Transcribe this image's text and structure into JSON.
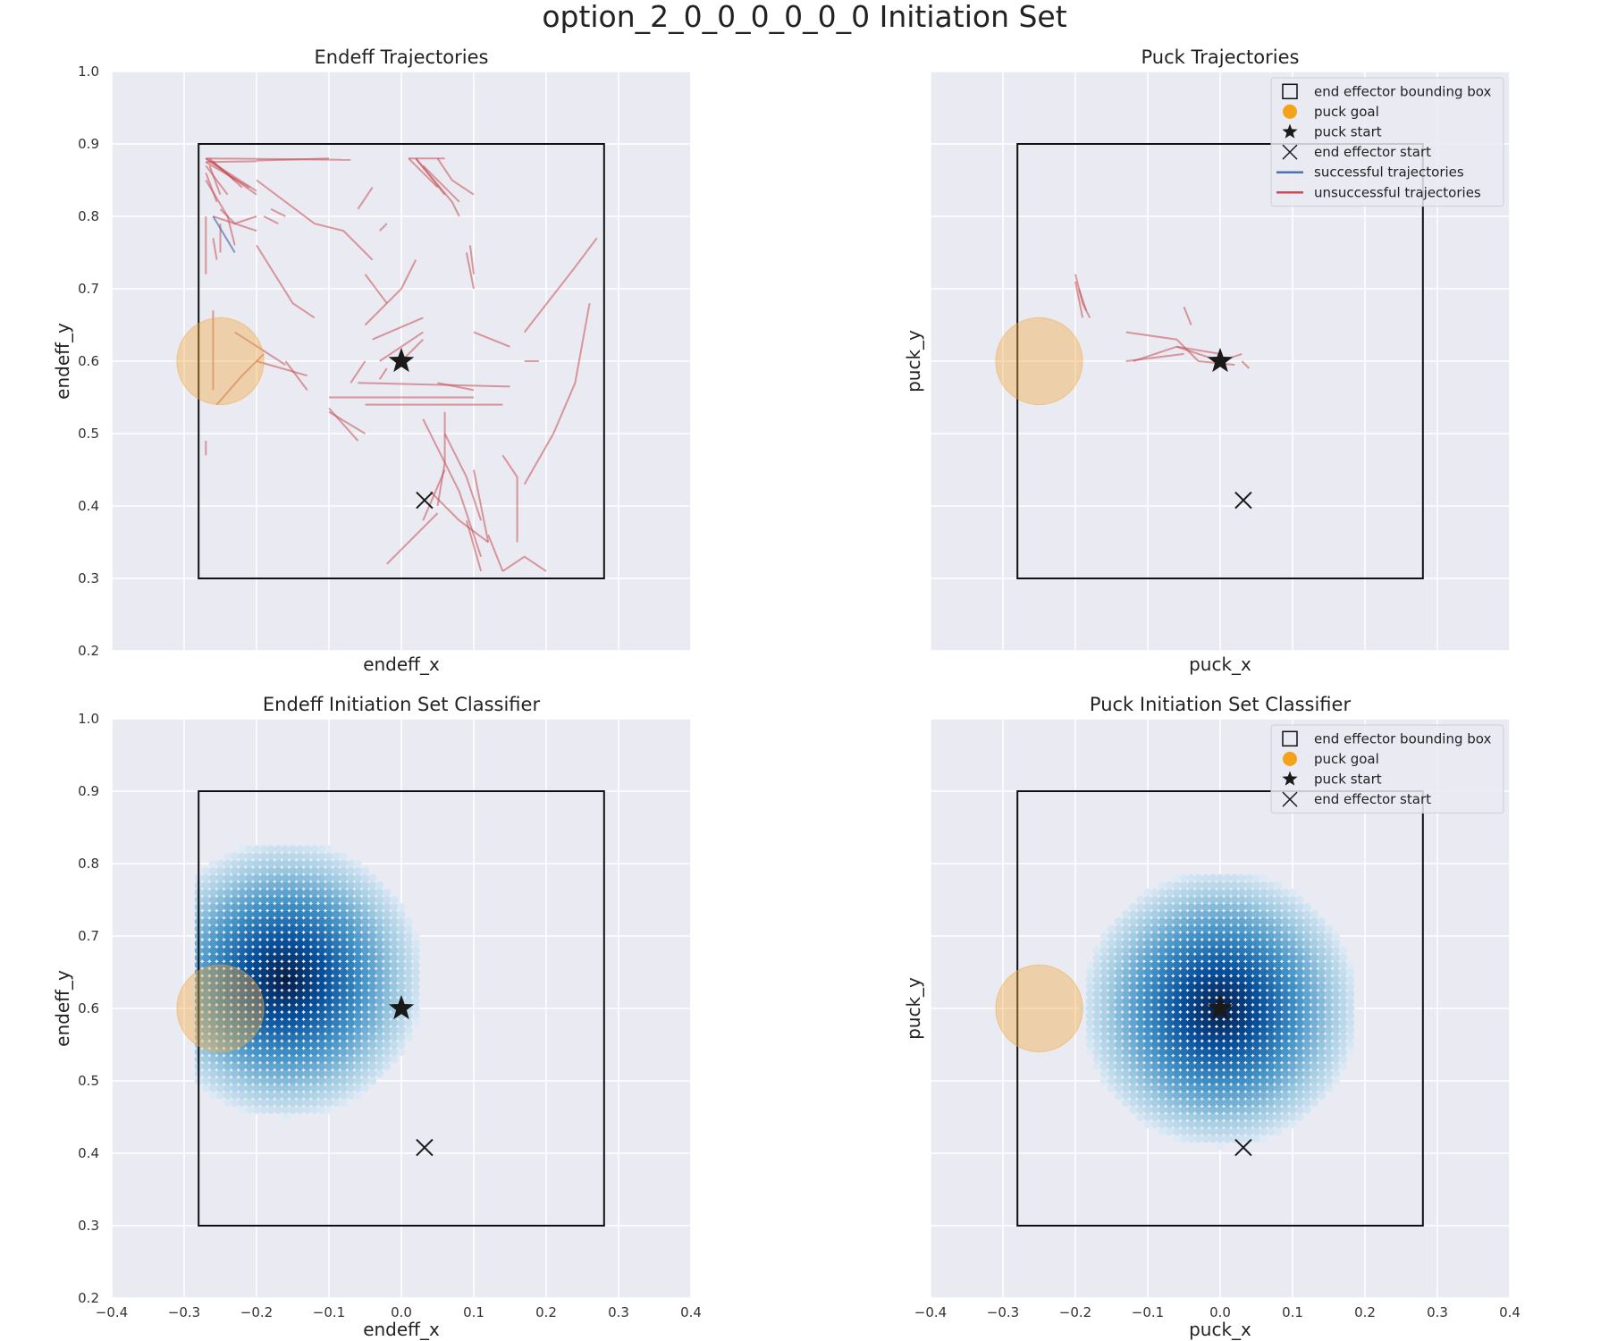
{
  "chart_data": {
    "title": "option_2_0_0_0_0_0_0 Initiation Set",
    "xlim": [
      -0.4,
      0.4
    ],
    "ylim": [
      0.2,
      1.0
    ],
    "xticks": [
      "−0.4",
      "−0.3",
      "−0.2",
      "−0.1",
      "0.0",
      "0.1",
      "0.2",
      "0.3",
      "0.4"
    ],
    "yticks": [
      "0.2",
      "0.3",
      "0.4",
      "0.5",
      "0.6",
      "0.7",
      "0.8",
      "0.9",
      "1.0"
    ],
    "grid": true,
    "bounding_box": {
      "x": [
        -0.28,
        0.28
      ],
      "y": [
        0.3,
        0.9
      ]
    },
    "puck_goal": {
      "x": -0.25,
      "y": 0.6,
      "radius": 0.06,
      "color": "#f2a93b"
    },
    "puck_start": {
      "x": 0.0,
      "y": 0.6
    },
    "endeff_start": {
      "x": 0.032,
      "y": 0.408
    },
    "colors": {
      "successful": "#4c72b0",
      "unsuccessful": "#c44e52",
      "background": "#eaeaf2"
    },
    "legend_entries": {
      "bbox": "end effector bounding box",
      "goal": "puck goal",
      "pstart": "puck start",
      "estart": "end effector start",
      "succ": "successful trajectories",
      "fail": "unsuccessful trajectories"
    },
    "panels": [
      {
        "type": "line",
        "title": "Endeff Trajectories",
        "xlabel": "endeff_x",
        "ylabel": "endeff_y",
        "legend": null,
        "show_xticks": false,
        "show_yticks": true,
        "unsuccessful_trajectories": [
          [
            [
              -0.27,
              0.88
            ],
            [
              -0.2,
              0.83
            ]
          ],
          [
            [
              -0.27,
              0.88
            ],
            [
              -0.2,
              0.835
            ]
          ],
          [
            [
              -0.27,
              0.875
            ],
            [
              -0.21,
              0.84
            ]
          ],
          [
            [
              -0.265,
              0.88
            ],
            [
              -0.22,
              0.84
            ]
          ],
          [
            [
              -0.26,
              0.875
            ],
            [
              -0.23,
              0.85
            ]
          ],
          [
            [
              -0.27,
              0.87
            ],
            [
              -0.24,
              0.83
            ]
          ],
          [
            [
              -0.265,
              0.87
            ],
            [
              -0.25,
              0.83
            ]
          ],
          [
            [
              -0.27,
              0.86
            ],
            [
              -0.255,
              0.82
            ]
          ],
          [
            [
              -0.27,
              0.88
            ],
            [
              -0.07,
              0.878
            ]
          ],
          [
            [
              -0.27,
              0.875
            ],
            [
              -0.2,
              0.876
            ]
          ],
          [
            [
              -0.2,
              0.877
            ],
            [
              -0.1,
              0.88
            ]
          ],
          [
            [
              -0.27,
              0.85
            ],
            [
              -0.24,
              0.8
            ]
          ],
          [
            [
              -0.26,
              0.8
            ],
            [
              -0.2,
              0.78
            ]
          ],
          [
            [
              -0.25,
              0.81
            ],
            [
              -0.23,
              0.79
            ],
            [
              -0.2,
              0.8
            ]
          ],
          [
            [
              -0.18,
              0.81
            ],
            [
              -0.16,
              0.8
            ]
          ],
          [
            [
              -0.19,
              0.8
            ],
            [
              -0.17,
              0.79
            ]
          ],
          [
            [
              -0.27,
              0.8
            ],
            [
              -0.27,
              0.72
            ]
          ],
          [
            [
              -0.26,
              0.77
            ],
            [
              -0.255,
              0.74
            ]
          ],
          [
            [
              -0.24,
              0.8
            ],
            [
              -0.23,
              0.76
            ]
          ],
          [
            [
              -0.25,
              0.79
            ],
            [
              -0.25,
              0.75
            ]
          ],
          [
            [
              -0.2,
              0.85
            ],
            [
              -0.12,
              0.79
            ],
            [
              -0.08,
              0.78
            ],
            [
              -0.04,
              0.74
            ]
          ],
          [
            [
              -0.2,
              0.76
            ],
            [
              -0.15,
              0.68
            ],
            [
              -0.12,
              0.66
            ]
          ],
          [
            [
              -0.26,
              0.67
            ],
            [
              -0.26,
              0.56
            ]
          ],
          [
            [
              -0.27,
              0.49
            ],
            [
              -0.27,
              0.47
            ]
          ],
          [
            [
              -0.255,
              0.54
            ],
            [
              -0.22,
              0.58
            ],
            [
              -0.19,
              0.61
            ]
          ],
          [
            [
              -0.23,
              0.64
            ],
            [
              -0.16,
              0.595
            ]
          ],
          [
            [
              -0.16,
              0.6
            ],
            [
              -0.13,
              0.56
            ]
          ],
          [
            [
              -0.2,
              0.6
            ],
            [
              -0.13,
              0.58
            ]
          ],
          [
            [
              -0.05,
              0.65
            ],
            [
              0.0,
              0.7
            ],
            [
              0.02,
              0.74
            ]
          ],
          [
            [
              -0.05,
              0.72
            ],
            [
              -0.02,
              0.68
            ]
          ],
          [
            [
              -0.03,
              0.78
            ],
            [
              -0.02,
              0.79
            ]
          ],
          [
            [
              -0.07,
              0.57
            ],
            [
              -0.05,
              0.6
            ]
          ],
          [
            [
              -0.04,
              0.63
            ],
            [
              0.03,
              0.66
            ]
          ],
          [
            [
              -0.03,
              0.6
            ],
            [
              0.03,
              0.64
            ]
          ],
          [
            [
              -0.03,
              0.575
            ],
            [
              -0.02,
              0.59
            ]
          ],
          [
            [
              0.0,
              0.6
            ],
            [
              0.03,
              0.63
            ]
          ],
          [
            [
              -0.06,
              0.57
            ],
            [
              0.15,
              0.565
            ]
          ],
          [
            [
              -0.1,
              0.55
            ],
            [
              0.1,
              0.55
            ]
          ],
          [
            [
              -0.1,
              0.535
            ],
            [
              -0.06,
              0.49
            ]
          ],
          [
            [
              -0.1,
              0.53
            ],
            [
              -0.05,
              0.5
            ]
          ],
          [
            [
              0.05,
              0.57
            ],
            [
              0.1,
              0.56
            ]
          ],
          [
            [
              0.03,
              0.54
            ],
            [
              0.14,
              0.54
            ]
          ],
          [
            [
              -0.05,
              0.54
            ],
            [
              0.03,
              0.54
            ]
          ],
          [
            [
              0.02,
              0.88
            ],
            [
              0.07,
              0.82
            ],
            [
              0.08,
              0.8
            ]
          ],
          [
            [
              0.02,
              0.88
            ],
            [
              0.06,
              0.83
            ]
          ],
          [
            [
              0.03,
              0.87
            ],
            [
              0.08,
              0.82
            ]
          ],
          [
            [
              0.05,
              0.88
            ],
            [
              0.07,
              0.85
            ],
            [
              0.1,
              0.83
            ]
          ],
          [
            [
              0.01,
              0.88
            ],
            [
              0.05,
              0.84
            ]
          ],
          [
            [
              0.01,
              0.88
            ],
            [
              0.06,
              0.88
            ]
          ],
          [
            [
              0.09,
              0.75
            ],
            [
              0.1,
              0.7
            ]
          ],
          [
            [
              0.095,
              0.76
            ],
            [
              0.1,
              0.72
            ]
          ],
          [
            [
              -0.04,
              0.84
            ],
            [
              -0.06,
              0.81
            ]
          ],
          [
            [
              0.1,
              0.64
            ],
            [
              0.15,
              0.62
            ]
          ],
          [
            [
              0.17,
              0.6
            ],
            [
              0.19,
              0.6
            ]
          ],
          [
            [
              0.17,
              0.64
            ],
            [
              0.24,
              0.73
            ],
            [
              0.27,
              0.77
            ]
          ],
          [
            [
              0.17,
              0.43
            ],
            [
              0.21,
              0.5
            ],
            [
              0.24,
              0.57
            ],
            [
              0.26,
              0.68
            ]
          ],
          [
            [
              0.14,
              0.47
            ],
            [
              0.16,
              0.44
            ],
            [
              0.16,
              0.35
            ]
          ],
          [
            [
              0.06,
              0.5
            ],
            [
              0.09,
              0.44
            ],
            [
              0.11,
              0.38
            ]
          ],
          [
            [
              0.03,
              0.52
            ],
            [
              0.06,
              0.46
            ],
            [
              0.08,
              0.42
            ]
          ],
          [
            [
              0.06,
              0.53
            ],
            [
              0.06,
              0.46
            ],
            [
              0.05,
              0.4
            ]
          ],
          [
            [
              0.1,
              0.45
            ],
            [
              0.12,
              0.35
            ]
          ],
          [
            [
              0.09,
              0.38
            ],
            [
              0.11,
              0.31
            ]
          ],
          [
            [
              0.05,
              0.39
            ],
            [
              0.02,
              0.36
            ],
            [
              -0.02,
              0.32
            ]
          ],
          [
            [
              0.06,
              0.45
            ],
            [
              0.03,
              0.38
            ]
          ],
          [
            [
              0.12,
              0.36
            ],
            [
              0.14,
              0.31
            ]
          ],
          [
            [
              0.08,
              0.42
            ],
            [
              0.11,
              0.33
            ]
          ],
          [
            [
              0.04,
              0.42
            ],
            [
              0.08,
              0.38
            ],
            [
              0.12,
              0.35
            ]
          ],
          [
            [
              0.14,
              0.31
            ],
            [
              0.17,
              0.33
            ],
            [
              0.2,
              0.31
            ]
          ]
        ],
        "successful_trajectories": [
          [
            [
              -0.26,
              0.8
            ],
            [
              -0.23,
              0.75
            ]
          ]
        ]
      },
      {
        "type": "line",
        "title": "Puck Trajectories",
        "xlabel": "puck_x",
        "ylabel": "puck_y",
        "legend": "top-right",
        "show_xticks": false,
        "show_yticks": false,
        "unsuccessful_trajectories": [
          [
            [
              -0.2,
              0.72
            ],
            [
              -0.19,
              0.68
            ],
            [
              -0.18,
              0.66
            ]
          ],
          [
            [
              -0.2,
              0.71
            ],
            [
              -0.19,
              0.66
            ]
          ],
          [
            [
              -0.195,
              0.7
            ],
            [
              -0.185,
              0.67
            ]
          ],
          [
            [
              -0.13,
              0.64
            ],
            [
              -0.06,
              0.63
            ],
            [
              -0.03,
              0.6
            ]
          ],
          [
            [
              -0.12,
              0.6
            ],
            [
              -0.06,
              0.62
            ],
            [
              0.0,
              0.61
            ]
          ],
          [
            [
              -0.13,
              0.6
            ],
            [
              -0.05,
              0.61
            ]
          ],
          [
            [
              -0.06,
              0.62
            ],
            [
              0.0,
              0.6
            ],
            [
              0.03,
              0.61
            ]
          ],
          [
            [
              -0.03,
              0.6
            ],
            [
              0.02,
              0.595
            ]
          ],
          [
            [
              -0.05,
              0.675
            ],
            [
              -0.04,
              0.65
            ]
          ],
          [
            [
              0.03,
              0.6
            ],
            [
              0.04,
              0.59
            ]
          ]
        ],
        "successful_trajectories": []
      },
      {
        "type": "heatmap",
        "title": "Endeff Initiation Set Classifier",
        "xlabel": "endeff_x",
        "ylabel": "endeff_y",
        "legend": null,
        "show_xticks": true,
        "show_yticks": true,
        "classifier_region": {
          "center": [
            -0.16,
            0.64
          ],
          "radius": 0.19,
          "clip_xmin": -0.28,
          "grid_step": 0.01,
          "colormap": "Blues"
        }
      },
      {
        "type": "heatmap",
        "title": "Puck Initiation Set Classifier",
        "xlabel": "puck_x",
        "ylabel": "puck_y",
        "legend": "top-right",
        "legend_excludes_trajectories": true,
        "show_xticks": true,
        "show_yticks": false,
        "classifier_region": {
          "center": [
            0.0,
            0.6
          ],
          "radius": 0.19,
          "clip_xmin": -0.3,
          "grid_step": 0.01,
          "colormap": "Blues"
        }
      }
    ]
  }
}
